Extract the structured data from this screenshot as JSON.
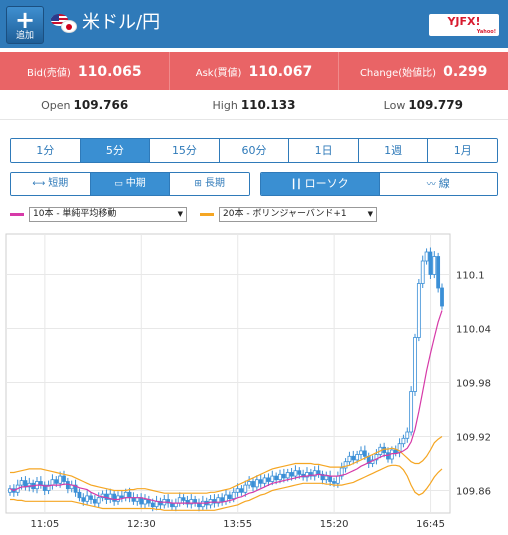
{
  "header": {
    "add_plus": "+",
    "add_label": "追加",
    "pair": "米ドル/円",
    "logo_text": "YJFX!",
    "logo_sub": "Yahoo!"
  },
  "rates": {
    "bid_label": "Bid(売値)",
    "bid_value": "110.065",
    "ask_label": "Ask(買値)",
    "ask_value": "110.067",
    "change_label": "Change(始値比)",
    "change_value": "0.299"
  },
  "ohl": {
    "open_label": "Open",
    "open_value": "109.766",
    "high_label": "High",
    "high_value": "110.133",
    "low_label": "Low",
    "low_value": "109.779"
  },
  "intervals": [
    "1分",
    "5分",
    "15分",
    "60分",
    "1日",
    "1週",
    "1月"
  ],
  "active_interval": 1,
  "ranges": [
    "短期",
    "中期",
    "長期"
  ],
  "active_range": 1,
  "chart_types": [
    "ローソク",
    "線"
  ],
  "active_type": 0,
  "indicators": {
    "ma_label": "10本 - 単純平均移動",
    "ma_color": "#d63aa8",
    "bb_label": "20本 - ボリンジャーバンド+1",
    "bb_color": "#f5a623"
  },
  "colors": {
    "header": "#2f7ab9",
    "rates_bg": "#e96466",
    "accent": "#3a8fd2",
    "candle": "#3b8fd6"
  },
  "chart_data": {
    "type": "candlestick",
    "x_ticks": [
      "11:05",
      "12:30",
      "13:55",
      "15:20",
      "16:45"
    ],
    "y_ticks": [
      110.1,
      110.04,
      109.98,
      109.92,
      109.86
    ],
    "ylim": [
      109.835,
      110.145
    ],
    "grid": true,
    "close": [
      109.862,
      109.858,
      109.866,
      109.871,
      109.864,
      109.868,
      109.862,
      109.87,
      109.866,
      109.86,
      109.866,
      109.872,
      109.868,
      109.876,
      109.87,
      109.862,
      109.866,
      109.858,
      109.852,
      109.848,
      109.854,
      109.85,
      109.846,
      109.852,
      109.856,
      109.85,
      109.856,
      109.848,
      109.854,
      109.852,
      109.858,
      109.852,
      109.848,
      109.852,
      109.845,
      109.85,
      109.846,
      109.842,
      109.848,
      109.844,
      109.85,
      109.846,
      109.842,
      109.846,
      109.852,
      109.849,
      109.845,
      109.85,
      109.846,
      109.842,
      109.848,
      109.844,
      109.85,
      109.846,
      109.852,
      109.848,
      109.855,
      109.851,
      109.858,
      109.862,
      109.858,
      109.866,
      109.87,
      109.864,
      109.872,
      109.868,
      109.874,
      109.87,
      109.876,
      109.872,
      109.878,
      109.874,
      109.88,
      109.876,
      109.882,
      109.878,
      109.875,
      109.88,
      109.876,
      109.882,
      109.878,
      109.872,
      109.876,
      109.87,
      109.868,
      109.876,
      109.885,
      109.892,
      109.898,
      109.894,
      109.9,
      109.904,
      109.898,
      109.89,
      109.894,
      109.9,
      109.908,
      109.902,
      109.895,
      109.905,
      109.902,
      109.912,
      109.918,
      109.925,
      109.97,
      110.03,
      110.09,
      110.115,
      110.125,
      110.1,
      110.12,
      110.085,
      110.065
    ],
    "ma10": [
      109.862,
      109.86,
      109.862,
      109.864,
      109.864,
      109.865,
      109.865,
      109.866,
      109.866,
      109.865,
      109.865,
      109.866,
      109.866,
      109.866,
      109.867,
      109.867,
      109.866,
      109.865,
      109.863,
      109.862,
      109.861,
      109.858,
      109.856,
      109.854,
      109.853,
      109.852,
      109.851,
      109.85,
      109.85,
      109.851,
      109.852,
      109.852,
      109.852,
      109.852,
      109.852,
      109.851,
      109.85,
      109.849,
      109.848,
      109.847,
      109.847,
      109.847,
      109.846,
      109.846,
      109.846,
      109.846,
      109.846,
      109.846,
      109.846,
      109.846,
      109.846,
      109.846,
      109.847,
      109.847,
      109.847,
      109.847,
      109.848,
      109.849,
      109.85,
      109.852,
      109.853,
      109.855,
      109.857,
      109.858,
      109.86,
      109.862,
      109.864,
      109.866,
      109.868,
      109.869,
      109.87,
      109.871,
      109.872,
      109.873,
      109.874,
      109.875,
      109.876,
      109.876,
      109.877,
      109.877,
      109.878,
      109.877,
      109.877,
      109.876,
      109.876,
      109.876,
      109.877,
      109.878,
      109.88,
      109.882,
      109.884,
      109.887,
      109.889,
      109.891,
      109.893,
      109.895,
      109.897,
      109.899,
      109.899,
      109.901,
      109.901,
      109.902,
      109.904,
      109.907,
      109.914,
      109.928,
      109.948,
      109.97,
      109.993,
      110.012,
      110.03,
      110.047,
      110.06
    ],
    "bb_upper": [
      109.88,
      109.88,
      109.881,
      109.882,
      109.883,
      109.884,
      109.884,
      109.884,
      109.884,
      109.883,
      109.882,
      109.881,
      109.88,
      109.879,
      109.878,
      109.877,
      109.876,
      109.874,
      109.872,
      109.87,
      109.868,
      109.866,
      109.865,
      109.864,
      109.863,
      109.862,
      109.861,
      109.86,
      109.86,
      109.86,
      109.86,
      109.861,
      109.861,
      109.862,
      109.862,
      109.862,
      109.861,
      109.86,
      109.859,
      109.858,
      109.857,
      109.857,
      109.857,
      109.857,
      109.857,
      109.857,
      109.857,
      109.857,
      109.857,
      109.857,
      109.857,
      109.857,
      109.858,
      109.858,
      109.859,
      109.86,
      109.861,
      109.862,
      109.864,
      109.866,
      109.868,
      109.87,
      109.872,
      109.874,
      109.876,
      109.878,
      109.88,
      109.882,
      109.884,
      109.885,
      109.886,
      109.887,
      109.888,
      109.889,
      109.89,
      109.89,
      109.89,
      109.89,
      109.89,
      109.889,
      109.889,
      109.888,
      109.887,
      109.886,
      109.886,
      109.886,
      109.886,
      109.887,
      109.888,
      109.89,
      109.892,
      109.894,
      109.896,
      109.898,
      109.9,
      109.902,
      109.904,
      109.906,
      109.906,
      109.907,
      109.906,
      109.904,
      109.9,
      109.896,
      109.892,
      109.89,
      109.89,
      109.893,
      109.898,
      109.905,
      109.913,
      109.917,
      109.92
    ],
    "bb_lower": [
      109.85,
      109.85,
      109.849,
      109.849,
      109.848,
      109.848,
      109.848,
      109.848,
      109.848,
      109.848,
      109.848,
      109.848,
      109.848,
      109.848,
      109.848,
      109.848,
      109.848,
      109.847,
      109.846,
      109.845,
      109.844,
      109.843,
      109.842,
      109.841,
      109.84,
      109.84,
      109.84,
      109.84,
      109.84,
      109.84,
      109.84,
      109.84,
      109.84,
      109.84,
      109.84,
      109.84,
      109.84,
      109.84,
      109.839,
      109.839,
      109.838,
      109.838,
      109.838,
      109.838,
      109.838,
      109.838,
      109.838,
      109.838,
      109.838,
      109.838,
      109.838,
      109.838,
      109.838,
      109.838,
      109.839,
      109.84,
      109.841,
      109.842,
      109.843,
      109.844,
      109.846,
      109.848,
      109.849,
      109.851,
      109.853,
      109.855,
      109.856,
      109.858,
      109.86,
      109.861,
      109.862,
      109.863,
      109.864,
      109.865,
      109.866,
      109.867,
      109.868,
      109.868,
      109.868,
      109.868,
      109.868,
      109.868,
      109.867,
      109.867,
      109.866,
      109.866,
      109.866,
      109.867,
      109.868,
      109.869,
      109.871,
      109.873,
      109.875,
      109.877,
      109.879,
      109.881,
      109.883,
      109.885,
      109.887,
      109.888,
      109.888,
      109.887,
      109.883,
      109.876,
      109.866,
      109.858,
      109.855,
      109.857,
      109.862,
      109.868,
      109.875,
      109.88,
      109.884
    ]
  }
}
